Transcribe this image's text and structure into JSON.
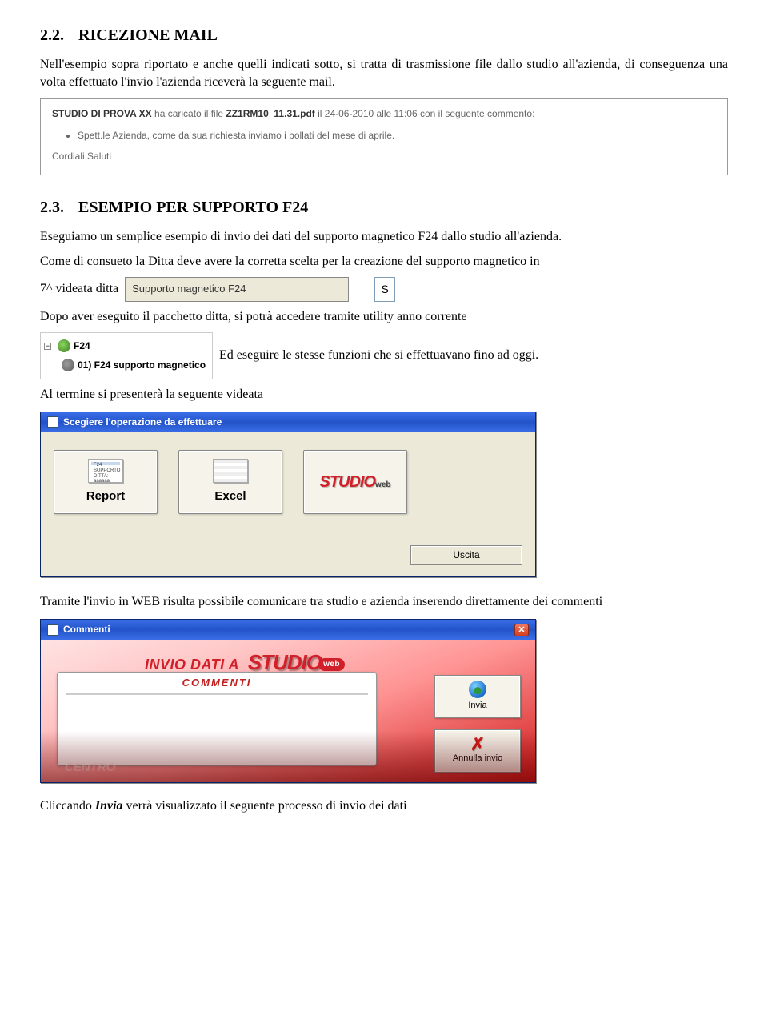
{
  "section22": {
    "number": "2.2.",
    "title": "RICEZIONE MAIL",
    "para": "Nell'esempio sopra riportato e anche quelli indicati sotto, si tratta di trasmissione file dallo studio all'azienda, di conseguenza una volta effettuato l'invio l'azienda riceverà la seguente mail."
  },
  "mailbox": {
    "studio_label": "STUDIO DI PROVA XX",
    "mid1": " ha caricato il file ",
    "file": "ZZ1RM10_11.31.pdf",
    "mid2": " il 24-06-2010 alle 11:06 con il seguente commento:",
    "bullet": "Spett.le Azienda, come da sua richiesta inviamo i bollati del mese di aprile.",
    "sign": "Cordiali Saluti"
  },
  "section23": {
    "number": "2.3.",
    "title": "ESEMPIO PER SUPPORTO F24",
    "para1": "Eseguiamo un semplice esempio di invio dei dati del supporto magnetico F24 dallo studio all'azienda.",
    "para2": "Come di consueto la Ditta deve avere la corretta scelta per la creazione del supporto magnetico in",
    "before_field": "7^ videata ditta",
    "field_label": "Supporto magnetico F24",
    "field_value": "S",
    "para3": "Dopo aver eseguito il pacchetto ditta, si potrà accedere tramite utility anno corrente",
    "tree_root": "F24",
    "tree_child": "01) F24 supporto magnetico",
    "after_tree": "Ed eseguire le stesse funzioni che si effettuavano fino ad oggi.",
    "para4": "Al termine si presenterà la seguente videata"
  },
  "dialog1": {
    "title": "Scegiere l'operazione da effettuare",
    "btn_report": "Report",
    "btn_report_sub1": "F24 SUPPORTO",
    "btn_report_sub2": "DITTA: aaaaaa",
    "btn_excel": "Excel",
    "btn_studio": "STUDIO",
    "uscita": "Uscita"
  },
  "between_para": "Tramite l'invio in WEB risulta possibile comunicare tra studio e azienda inserendo direttamente dei commenti",
  "dialog2": {
    "title": "Commenti",
    "line_prefix": "INVIO DATI A",
    "logo": "STUDIO",
    "web": "web",
    "panel_title": "COMMENTI",
    "btn_invia": "Invia",
    "btn_annulla": "Annulla invio",
    "centro": "CENTRO"
  },
  "final_para_pre": "Cliccando ",
  "final_para_em": "Invia",
  "final_para_post": " verrà visualizzato il seguente processo di invio dei dati"
}
